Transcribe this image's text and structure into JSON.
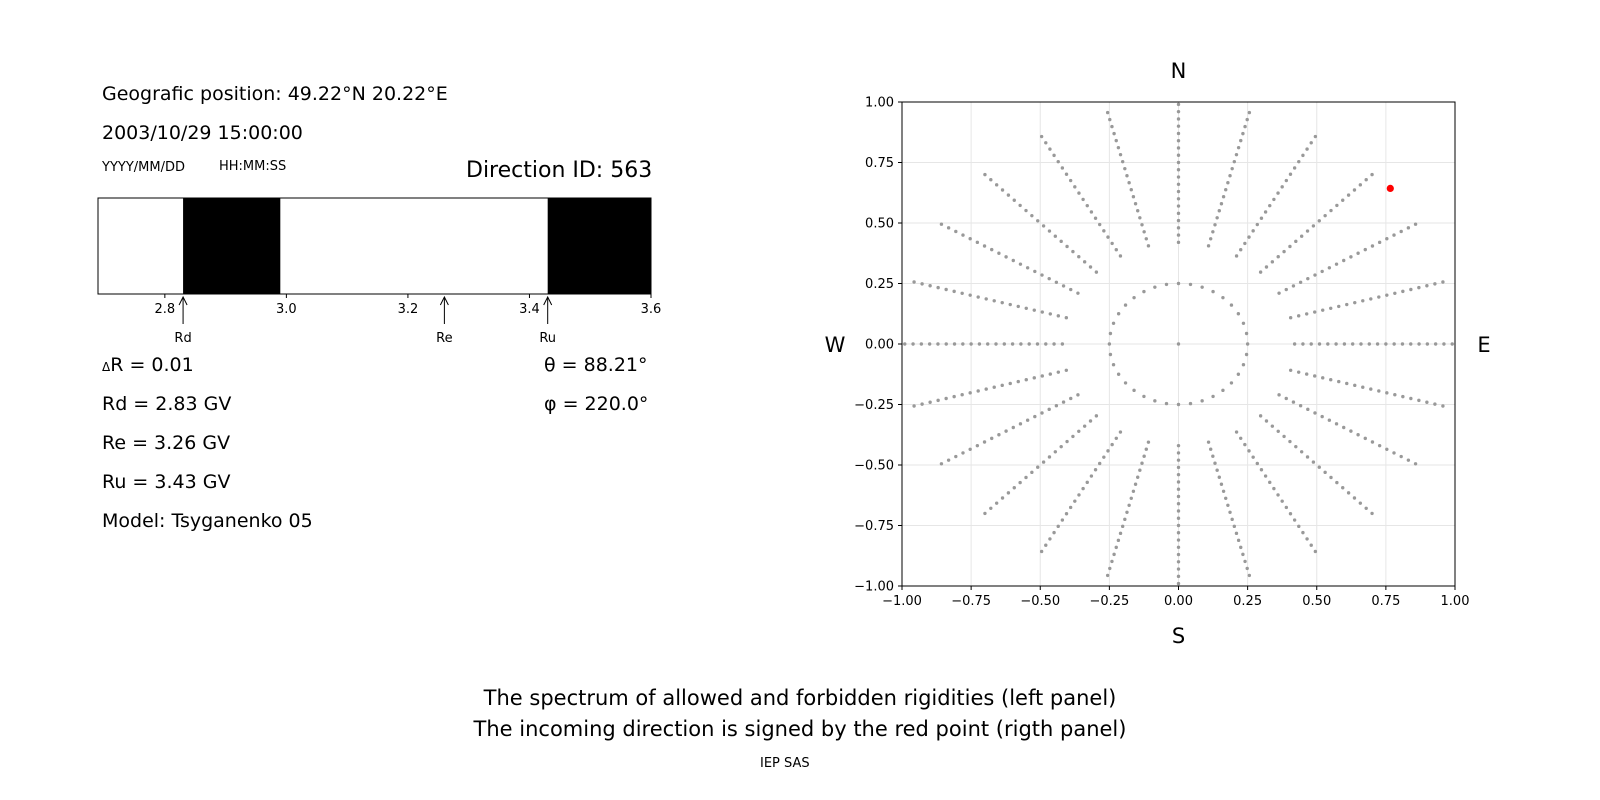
{
  "left_panel": {
    "position": "Geografic position: 49.22°N 20.22°E",
    "datetime": "2003/10/29 15:00:00",
    "date_format": "YYYY/MM/DD",
    "time_format": "HH:MM:SS",
    "direction_id": "Direction ID: 563",
    "delta_r": "ΔR = 0.01",
    "delta_r_symbol": "Δ",
    "delta_r_text": "R = 0.01",
    "rd": "Rd = 2.83 GV",
    "re": "Re = 3.26 GV",
    "ru": "Ru = 3.43 GV",
    "model": "Model: Tsyganenko 05",
    "theta": "θ = 88.21°",
    "phi": "φ = 220.0°"
  },
  "footer": {
    "line1": "The spectrum of allowed and forbidden rigidities (left panel)",
    "line2": "The incoming direction is signed by the red point (rigth panel)",
    "credit": "IEP SAS"
  },
  "chart_data": [
    {
      "type": "bar",
      "title": "",
      "xlabel": "",
      "xlim": [
        2.69,
        3.6
      ],
      "xticks": [
        2.8,
        3.0,
        3.2,
        3.4,
        3.6
      ],
      "xtick_labels": [
        "2.8",
        "3.0",
        "3.2",
        "3.4",
        "3.6"
      ],
      "forbidden_bands": [
        [
          2.83,
          2.99
        ],
        [
          3.43,
          3.6
        ]
      ],
      "band_color": "#000000",
      "markers": [
        {
          "label": "Rd",
          "value": 2.83
        },
        {
          "label": "Re",
          "value": 3.26
        },
        {
          "label": "Ru",
          "value": 3.43
        }
      ]
    },
    {
      "type": "scatter",
      "xlim": [
        -1.0,
        1.0
      ],
      "ylim": [
        -1.0,
        1.0
      ],
      "xticks": [
        -1.0,
        -0.75,
        -0.5,
        -0.25,
        0.0,
        0.25,
        0.5,
        0.75,
        1.0
      ],
      "yticks": [
        -1.0,
        -0.75,
        -0.5,
        -0.25,
        0.0,
        0.25,
        0.5,
        0.75,
        1.0
      ],
      "xtick_labels": [
        "−1.00",
        "−0.75",
        "−0.50",
        "−0.25",
        "0.00",
        "0.25",
        "0.50",
        "0.75",
        "1.00"
      ],
      "ytick_labels": [
        "−1.00",
        "−0.75",
        "−0.50",
        "−0.25",
        "0.00",
        "0.25",
        "0.50",
        "0.75",
        "1.00"
      ],
      "grid": true,
      "compass": {
        "north": "N",
        "south": "S",
        "west": "W",
        "east": "E"
      },
      "grid_points": {
        "description_rule": "center point, ring r=0.25 every 10 deg, rays every 15 deg from r=0.42 to r=1.0 step 0.03",
        "center": [
          0,
          0
        ],
        "inner_ring_radius": 0.25,
        "inner_ring_step_deg": 10,
        "ray_step_deg": 15,
        "ray_r_start": 0.42,
        "ray_r_end": 1.0,
        "ray_r_step": 0.03,
        "color": "#999999"
      },
      "highlight_point": {
        "x": 0.766,
        "y": 0.643,
        "color": "#ff0000"
      }
    }
  ]
}
